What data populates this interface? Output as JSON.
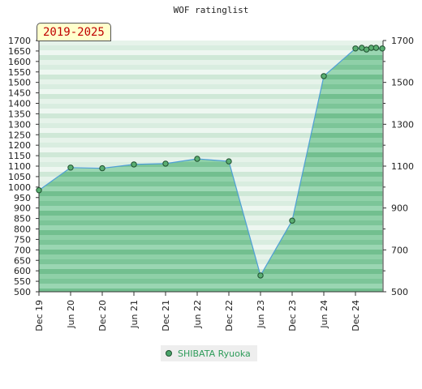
{
  "title": "WOF ratinglist",
  "badge": "2019-2025",
  "chart_data": {
    "type": "area",
    "title": "WOF ratinglist",
    "ylim": [
      500,
      1700
    ],
    "y_ticks_left": [
      500,
      550,
      600,
      650,
      700,
      750,
      800,
      850,
      900,
      950,
      1000,
      1050,
      1100,
      1150,
      1200,
      1250,
      1300,
      1350,
      1400,
      1450,
      1500,
      1550,
      1600,
      1650,
      1700
    ],
    "y_ticks_right": [
      500,
      700,
      900,
      1100,
      1300,
      1500,
      1700
    ],
    "x_ticks": [
      "Dec 19",
      "Jun 20",
      "Dec 20",
      "Jun 21",
      "Dec 21",
      "Jun 22",
      "Dec 22",
      "Jun 23",
      "Dec 23",
      "Jun 24",
      "Dec 24"
    ],
    "xlim": [
      0,
      10.9
    ],
    "legend_position": "bottom-center",
    "grid": false,
    "colors": {
      "line": "#4f9fd6",
      "fill": "#7dc79a",
      "marker": "#5aaf72",
      "marker_edge": "#1e4f2e"
    },
    "series": [
      {
        "name": "SHIBATA Ryuoka",
        "x": [
          0,
          1,
          2,
          3,
          4,
          5,
          6,
          7,
          8,
          9,
          10,
          10.2,
          10.35,
          10.5,
          10.65,
          10.85
        ],
        "values": [
          985,
          1093,
          1090,
          1108,
          1112,
          1135,
          1123,
          578,
          840,
          1530,
          1662,
          1665,
          1657,
          1665,
          1665,
          1662
        ]
      }
    ]
  }
}
